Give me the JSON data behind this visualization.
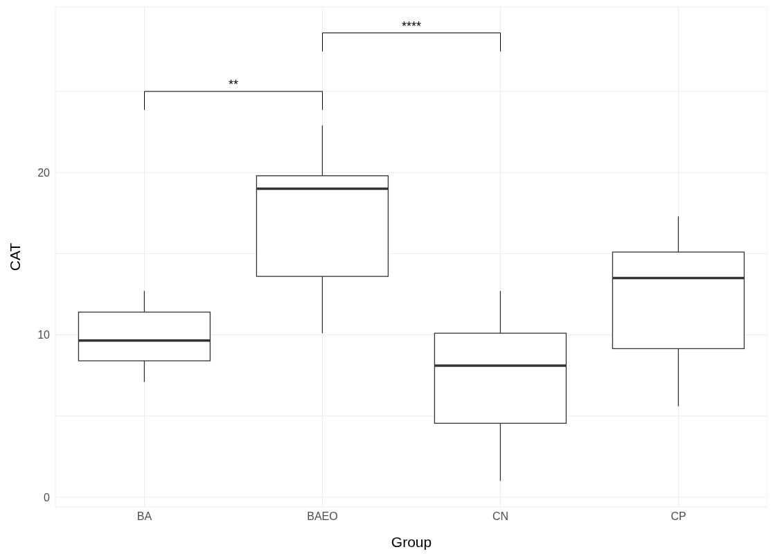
{
  "chart_data": {
    "type": "box",
    "xlabel": "Group",
    "ylabel": "CAT",
    "categories": [
      "BA",
      "BAEO",
      "CN",
      "CP"
    ],
    "boxes": [
      {
        "low": 7.1,
        "q1": 8.4,
        "median": 9.65,
        "q3": 11.4,
        "high": 12.7
      },
      {
        "low": 10.1,
        "q1": 13.6,
        "median": 19.0,
        "q3": 19.8,
        "high": 22.9
      },
      {
        "low": 1.0,
        "q1": 4.55,
        "median": 8.1,
        "q3": 10.1,
        "high": 12.7
      },
      {
        "low": 5.6,
        "q1": 9.15,
        "median": 13.5,
        "q3": 15.1,
        "high": 17.3
      }
    ],
    "color": "#333333",
    "ylim": [
      -0.6,
      30.2
    ],
    "yticks": [
      0,
      {
        "value": 5,
        "label": null
      },
      10,
      {
        "value": 15,
        "label": null
      },
      20,
      {
        "value": 25,
        "label": null
      }
    ],
    "grid": true,
    "annotations": [
      "**",
      "****"
    ]
  }
}
